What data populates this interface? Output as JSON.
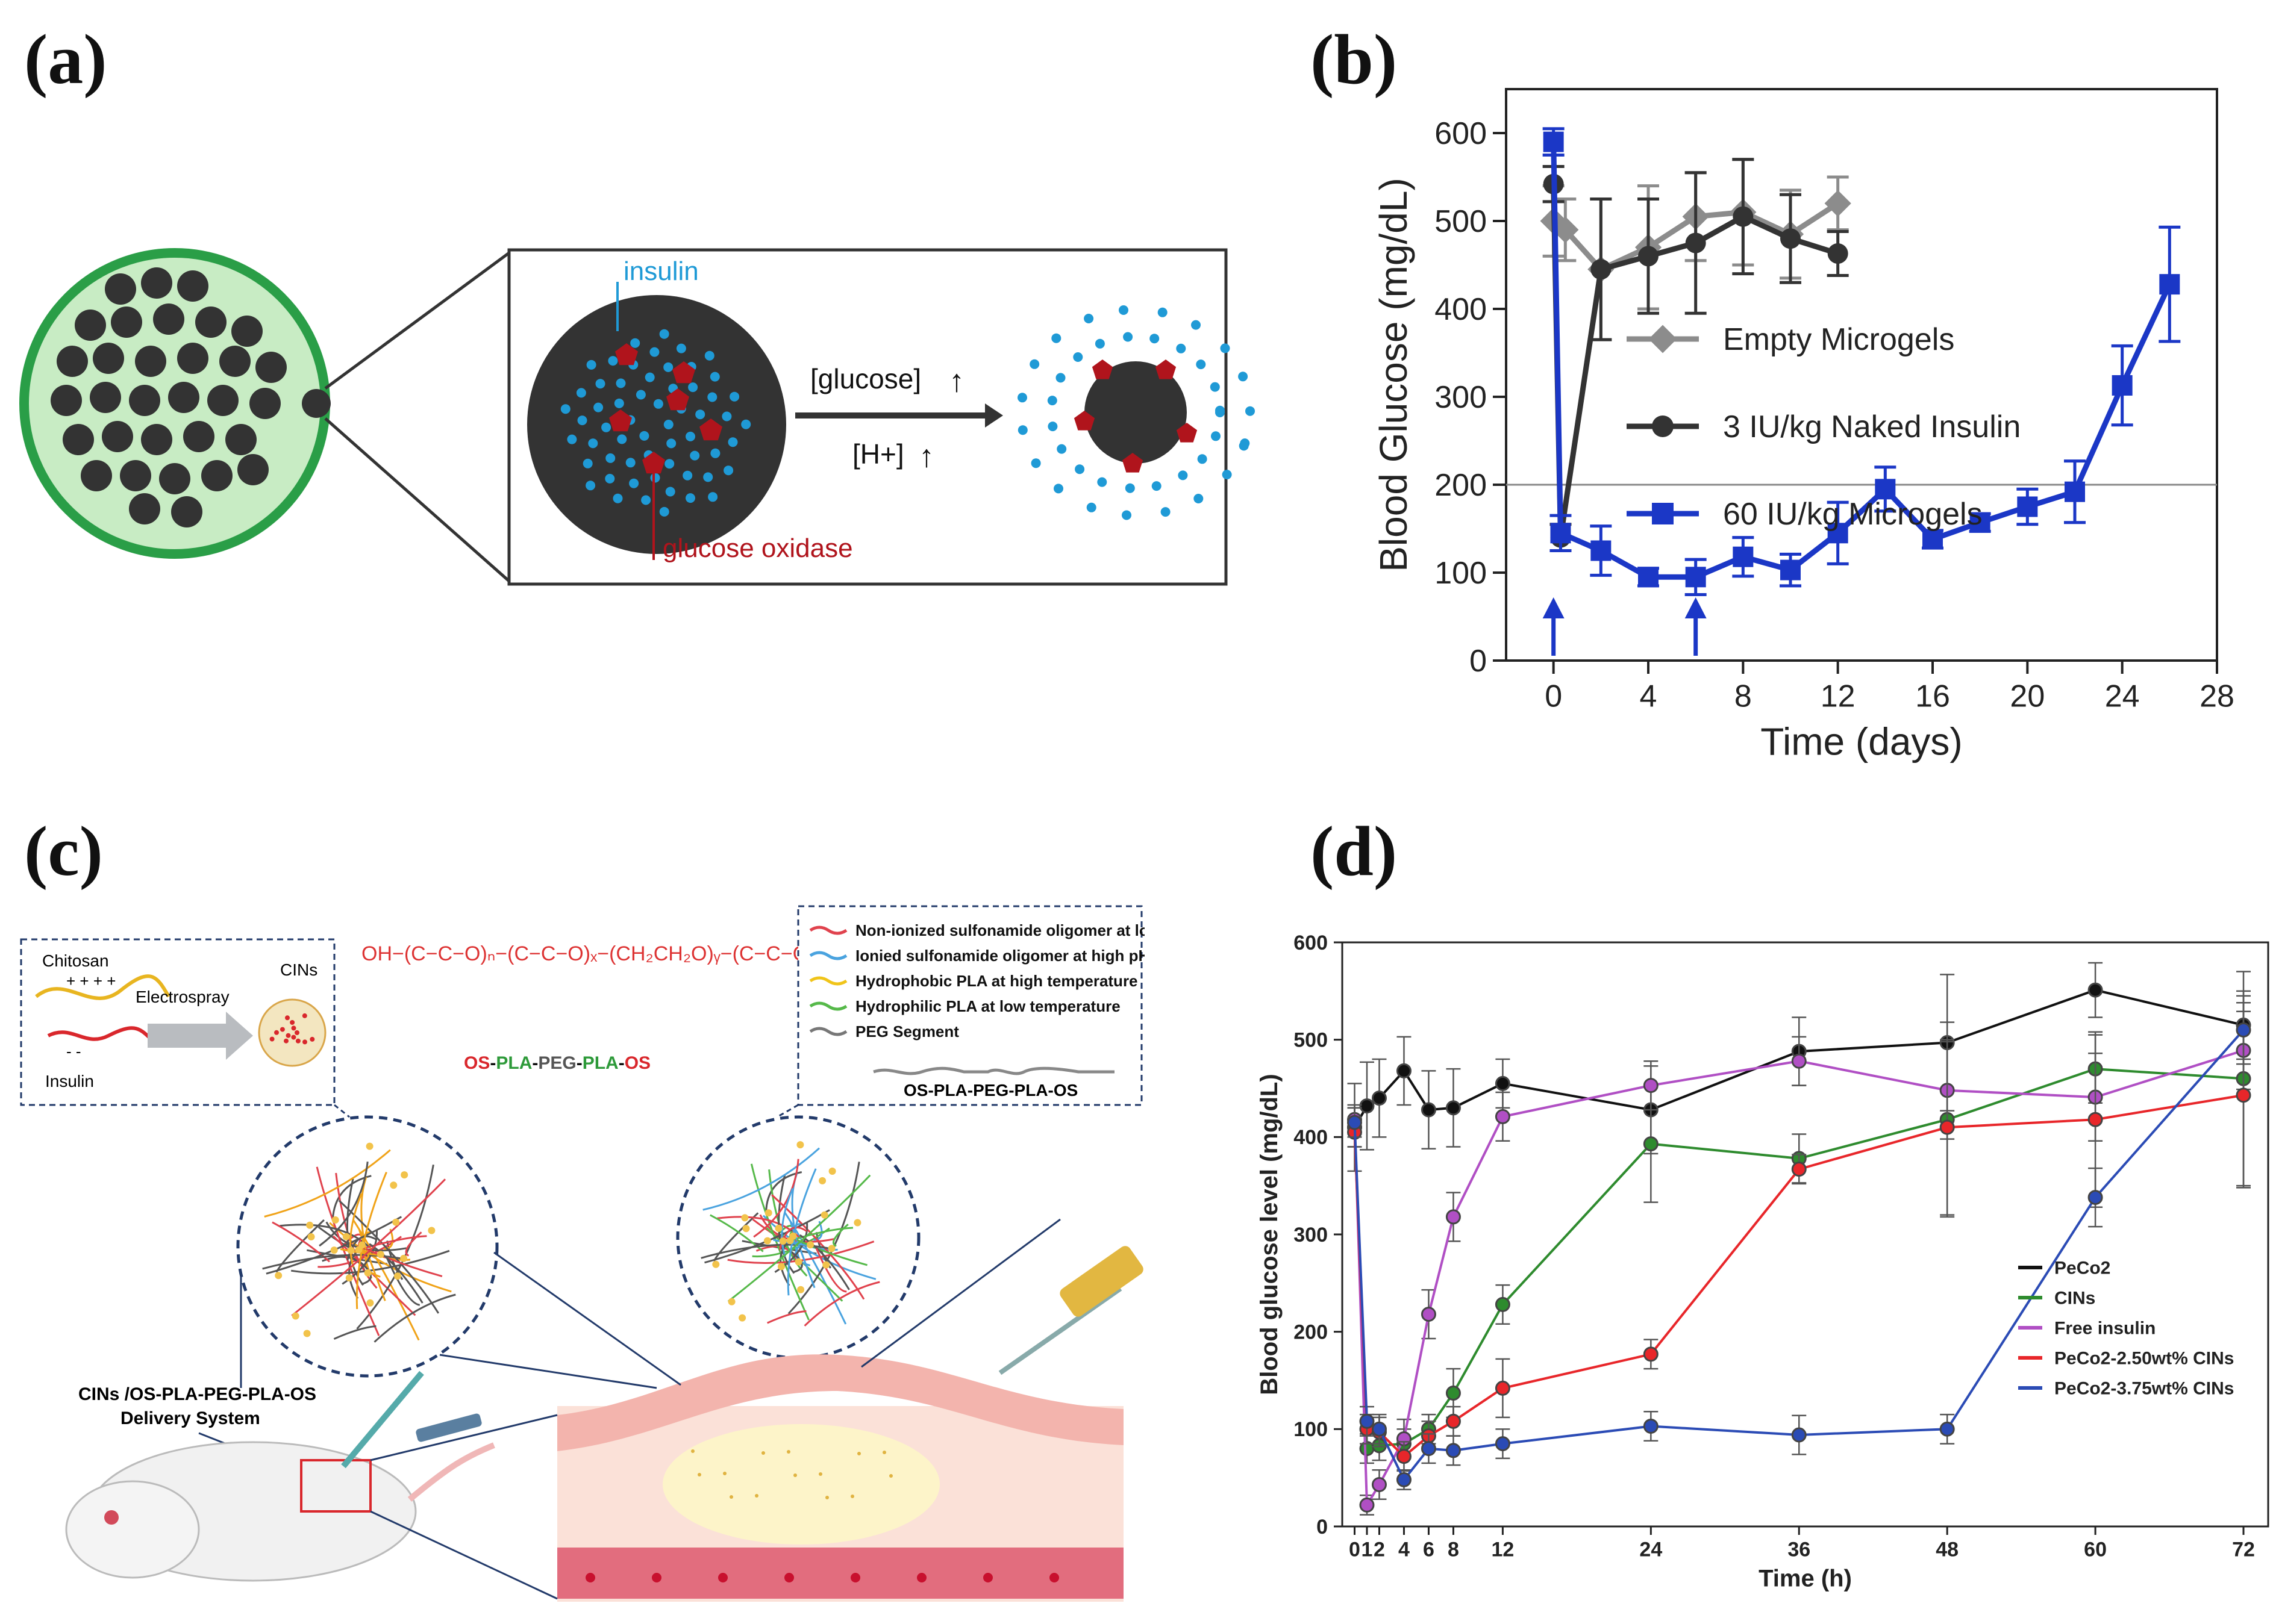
{
  "panels": {
    "a": "(a)",
    "b": "(b)",
    "c": "(c)",
    "d": "(d)"
  },
  "panel_a": {
    "insulin_label": "insulin",
    "glucose_oxidase_label": "glucose oxidase",
    "glucose_label": "[glucose]",
    "h_label": "[H+]",
    "colors": {
      "gel": "#c8ecc4",
      "gel_border": "#2a9e47",
      "particle": "#333333",
      "insulin": "#1f9ad6",
      "enzyme": "#b0141c"
    }
  },
  "panel_c": {
    "chitosan_label": "Chitosan",
    "insulin_label": "Insulin",
    "electrospray_label": "Electrospray",
    "cins_label": "CINs",
    "polymer_name": [
      "OS",
      "-",
      "PLA",
      "-",
      "PEG",
      "-",
      "PLA",
      "-",
      "OS"
    ],
    "legend": [
      {
        "text": "Non-ionized sulfonamide oligomer at low pH",
        "color": "#e0424d"
      },
      {
        "text": "Ionied sulfonamide oligomer at high pH",
        "color": "#4aa3df"
      },
      {
        "text": "Hydrophobic PLA at high temperature",
        "color": "#f0c419"
      },
      {
        "text": "Hydrophilic PLA at low temperature",
        "color": "#56b94a"
      },
      {
        "text": "PEG Segment",
        "color": "#777777"
      }
    ],
    "polymer_caption": "OS-PLA-PEG-PLA-OS",
    "delivery_label_1": "CINs /OS-PLA-PEG-PLA-OS",
    "delivery_label_2": "Delivery System"
  },
  "chart_data": [
    {
      "type": "line",
      "panel": "b",
      "xlabel": "Time (days)",
      "ylabel": "Blood Glucose (mg/dL)",
      "xlim": [
        -2,
        28
      ],
      "ylim": [
        0,
        650
      ],
      "xticks": [
        0,
        4,
        8,
        12,
        16,
        20,
        24,
        28
      ],
      "yticks": [
        0,
        100,
        200,
        300,
        400,
        500,
        600
      ],
      "reference_line": 200,
      "arrows_at_x": [
        0,
        6
      ],
      "series": [
        {
          "name": "Empty Microgels",
          "color": "#8c8c8c",
          "marker": "diamond",
          "x": [
            0,
            0.5,
            2,
            4,
            6,
            8,
            10,
            12
          ],
          "y": [
            500,
            490,
            445,
            470,
            505,
            510,
            485,
            520
          ],
          "err": [
            40,
            35,
            80,
            70,
            50,
            60,
            50,
            30
          ]
        },
        {
          "name": "3 IU/kg Naked Insulin",
          "color": "#333333",
          "marker": "circle",
          "x": [
            0,
            0.3,
            2,
            4,
            6,
            8,
            10,
            12
          ],
          "y": [
            542,
            140,
            445,
            460,
            475,
            505,
            480,
            463
          ],
          "err": [
            20,
            15,
            80,
            65,
            80,
            65,
            50,
            25
          ]
        },
        {
          "name": "60 IU/kg Microgels",
          "color": "#1b37c6",
          "marker": "square",
          "x": [
            0,
            0.3,
            2,
            4,
            6,
            8,
            10,
            12,
            14,
            16,
            18,
            20,
            22,
            24,
            26
          ],
          "y": [
            590,
            145,
            125,
            95,
            95,
            118,
            103,
            145,
            195,
            138,
            157,
            175,
            192,
            313,
            428
          ],
          "err": [
            15,
            20,
            28,
            10,
            20,
            22,
            18,
            35,
            25,
            10,
            10,
            20,
            35,
            45,
            65
          ]
        }
      ]
    },
    {
      "type": "line",
      "panel": "d",
      "xlabel": "Time (h)",
      "ylabel": "Blood glucose level (mg/dL)",
      "xlim": [
        -1,
        74
      ],
      "ylim": [
        0,
        600
      ],
      "xticks": [
        0,
        1,
        2,
        4,
        6,
        8,
        12,
        24,
        36,
        48,
        60,
        72
      ],
      "xticklabels": [
        "0",
        "1",
        "2",
        "4",
        "6",
        "8",
        "12",
        "24",
        "36",
        "48",
        "60",
        "72"
      ],
      "yticks": [
        0,
        100,
        200,
        300,
        400,
        500,
        600
      ],
      "series": [
        {
          "name": "PeCo2",
          "color": "#111111",
          "x": [
            0,
            1,
            2,
            4,
            6,
            8,
            12,
            24,
            36,
            48,
            60,
            72
          ],
          "y": [
            410,
            432,
            440,
            468,
            428,
            430,
            455,
            428,
            488,
            497,
            551,
            515
          ],
          "err": [
            45,
            45,
            40,
            35,
            40,
            40,
            25,
            45,
            35,
            70,
            28,
            35
          ]
        },
        {
          "name": "CINs",
          "color": "#2e8b2e",
          "x": [
            0,
            1,
            2,
            4,
            6,
            8,
            12,
            24,
            36,
            48,
            60,
            72
          ],
          "y": [
            410,
            80,
            83,
            85,
            100,
            137,
            228,
            393,
            378,
            418,
            470,
            460
          ],
          "err": [
            20,
            15,
            15,
            15,
            15,
            25,
            20,
            60,
            25,
            100,
            35,
            110
          ]
        },
        {
          "name": "Free insulin",
          "color": "#b04fc4",
          "x": [
            0,
            1,
            2,
            4,
            6,
            8,
            12,
            24,
            36,
            48,
            60,
            72
          ],
          "y": [
            418,
            22,
            43,
            90,
            218,
            318,
            421,
            453,
            478,
            448,
            441,
            489
          ],
          "err": [
            15,
            10,
            15,
            20,
            25,
            25,
            25,
            25,
            25,
            50,
            45,
            40
          ]
        },
        {
          "name": "PeCo2-2.50wt% CINs",
          "color": "#e8262a",
          "x": [
            0,
            1,
            2,
            4,
            6,
            8,
            12,
            24,
            36,
            48,
            60,
            72
          ],
          "y": [
            405,
            100,
            97,
            72,
            93,
            108,
            142,
            177,
            367,
            410,
            418,
            443
          ],
          "err": [
            15,
            15,
            15,
            15,
            15,
            15,
            30,
            15,
            15,
            90,
            90,
            95
          ]
        },
        {
          "name": "PeCo2-3.75wt% CINs",
          "color": "#2b4bb5",
          "x": [
            0,
            1,
            2,
            4,
            6,
            8,
            12,
            24,
            36,
            48,
            60,
            72
          ],
          "y": [
            415,
            108,
            100,
            48,
            80,
            78,
            85,
            103,
            94,
            100,
            338,
            510
          ],
          "err": [
            15,
            15,
            15,
            10,
            15,
            15,
            15,
            15,
            20,
            15,
            30,
            35
          ]
        }
      ]
    }
  ]
}
